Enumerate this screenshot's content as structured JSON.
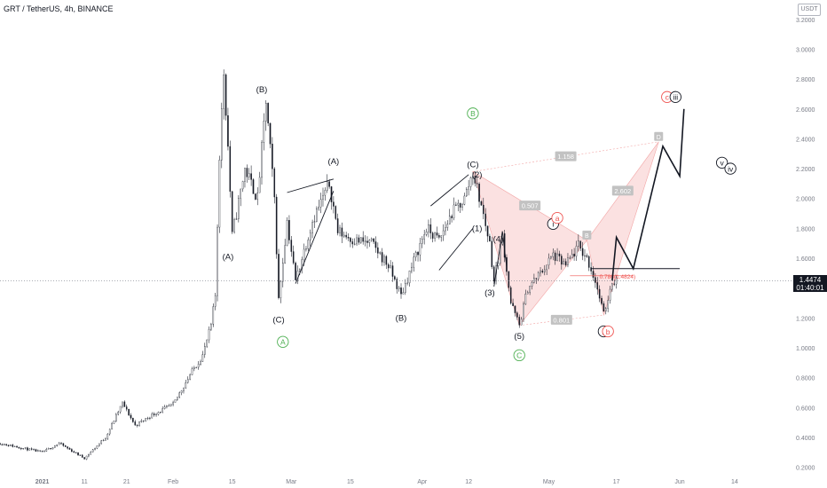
{
  "header": {
    "title": "GRT / TetherUS, 4h, BINANCE",
    "currency": "USDT"
  },
  "price_badge": {
    "price": "1.4474",
    "countdown": "01:40:01"
  },
  "colors": {
    "candle": "#131722",
    "label_black": "#131722",
    "label_green": "#4caf50",
    "label_red": "#ef5350",
    "harmonic_fill": "#f8c9c9",
    "harmonic_label_bg": "#c2c2c2",
    "axis_text": "#787b86",
    "dotted_line": "#787b86"
  },
  "chart_data": {
    "type": "candlestick",
    "symbol": "GRT / TetherUS",
    "interval": "4h",
    "exchange": "BINANCE",
    "x_ticks": [
      "2021",
      "11",
      "21",
      "Feb",
      "15",
      "Mar",
      "15",
      "Apr",
      "12",
      "May",
      "17",
      "Jun",
      "14"
    ],
    "x_tick_dates": [
      "2021-01-01",
      "2021-01-11",
      "2021-01-21",
      "2021-02-01",
      "2021-02-15",
      "2021-03-01",
      "2021-03-15",
      "2021-04-01",
      "2021-04-12",
      "2021-05-01",
      "2021-05-17",
      "2021-06-01",
      "2021-06-14"
    ],
    "y_ticks": [
      "3.2000",
      "3.0000",
      "2.8000",
      "2.6000",
      "2.4000",
      "2.2000",
      "2.0000",
      "1.8000",
      "1.6000",
      "1.4000",
      "1.2000",
      "1.0000",
      "0.8000",
      "0.6000",
      "0.4000",
      "0.2000"
    ],
    "ylim": [
      0.15,
      3.3
    ],
    "current_price": 1.4474,
    "price_path": [
      [
        "2020-12-22",
        0.36
      ],
      [
        "2021-01-01",
        0.3
      ],
      [
        "2021-01-05",
        0.36
      ],
      [
        "2021-01-11",
        0.26
      ],
      [
        "2021-01-16",
        0.4
      ],
      [
        "2021-01-20",
        0.63
      ],
      [
        "2021-01-23",
        0.48
      ],
      [
        "2021-01-27",
        0.55
      ],
      [
        "2021-02-01",
        0.62
      ],
      [
        "2021-02-05",
        0.82
      ],
      [
        "2021-02-08",
        0.95
      ],
      [
        "2021-02-10",
        1.15
      ],
      [
        "2021-02-11",
        1.35
      ],
      [
        "2021-02-12",
        2.3
      ],
      [
        "2021-02-13",
        2.85
      ],
      [
        "2021-02-14",
        2.35
      ],
      [
        "2021-02-15",
        1.75
      ],
      [
        "2021-02-18",
        2.2
      ],
      [
        "2021-02-21",
        2.0
      ],
      [
        "2021-02-23",
        2.65
      ],
      [
        "2021-02-25",
        2.0
      ],
      [
        "2021-02-26",
        1.32
      ],
      [
        "2021-02-28",
        1.85
      ],
      [
        "2021-03-02",
        1.45
      ],
      [
        "2021-03-06",
        1.85
      ],
      [
        "2021-03-10",
        2.1
      ],
      [
        "2021-03-12",
        1.78
      ],
      [
        "2021-03-16",
        1.72
      ],
      [
        "2021-03-20",
        1.7
      ],
      [
        "2021-03-24",
        1.55
      ],
      [
        "2021-03-27",
        1.35
      ],
      [
        "2021-03-30",
        1.58
      ],
      [
        "2021-04-02",
        1.8
      ],
      [
        "2021-04-05",
        1.72
      ],
      [
        "2021-04-08",
        1.9
      ],
      [
        "2021-04-11",
        2.0
      ],
      [
        "2021-04-13",
        2.18
      ],
      [
        "2021-04-15",
        1.95
      ],
      [
        "2021-04-17",
        1.7
      ],
      [
        "2021-04-18",
        1.45
      ],
      [
        "2021-04-20",
        1.75
      ],
      [
        "2021-04-22",
        1.3
      ],
      [
        "2021-04-24",
        1.15
      ],
      [
        "2021-04-26",
        1.4
      ],
      [
        "2021-04-29",
        1.5
      ],
      [
        "2021-05-02",
        1.62
      ],
      [
        "2021-05-05",
        1.55
      ],
      [
        "2021-05-08",
        1.68
      ],
      [
        "2021-05-10",
        1.6
      ],
      [
        "2021-05-12",
        1.45
      ],
      [
        "2021-05-14",
        1.22
      ],
      [
        "2021-05-16",
        1.45
      ],
      [
        "2021-05-17",
        1.4474
      ]
    ],
    "projection_path": [
      [
        "2021-05-16",
        1.45
      ],
      [
        "2021-05-17",
        1.74
      ],
      [
        "2021-05-21",
        1.53
      ],
      [
        "2021-05-28",
        2.35
      ],
      [
        "2021-06-01",
        2.15
      ],
      [
        "2021-06-02",
        2.6
      ]
    ],
    "fib_level": {
      "ratio": "0.786",
      "price": 1.4824,
      "label": "0.786(1.4824)"
    },
    "horizontal_level": 1.53,
    "harmonic_pattern": {
      "points": [
        [
          "2021-04-13",
          2.18
        ],
        [
          "2021-04-24",
          1.15
        ],
        [
          "2021-05-10",
          1.72
        ],
        [
          "2021-05-14",
          1.22
        ],
        [
          "2021-05-27",
          2.38
        ]
      ],
      "point_labels": [
        "",
        "",
        "B",
        "",
        "D"
      ],
      "ratios": [
        "1.158",
        "0.507",
        "0.801",
        "2.602"
      ]
    },
    "annotations": [
      {
        "text": "(B)",
        "date": "2021-02-22",
        "price": 2.73,
        "color": "black"
      },
      {
        "text": "(A)",
        "date": "2021-02-14",
        "price": 1.61,
        "color": "black"
      },
      {
        "text": "(C)",
        "date": "2021-02-26",
        "price": 1.19,
        "color": "black"
      },
      {
        "text": "A",
        "date": "2021-02-27",
        "price": 1.04,
        "color": "green",
        "circle": true
      },
      {
        "text": "(A)",
        "date": "2021-03-11",
        "price": 2.25,
        "color": "black"
      },
      {
        "text": "(B)",
        "date": "2021-03-27",
        "price": 1.2,
        "color": "black"
      },
      {
        "text": "B",
        "date": "2021-04-13",
        "price": 2.57,
        "color": "green",
        "circle": true
      },
      {
        "text": "(C)",
        "date": "2021-04-13",
        "price": 2.23,
        "color": "black"
      },
      {
        "text": "(2)",
        "date": "2021-04-14",
        "price": 2.16,
        "color": "black"
      },
      {
        "text": "(1)",
        "date": "2021-04-14",
        "price": 1.8,
        "color": "black"
      },
      {
        "text": "(4)",
        "date": "2021-04-19",
        "price": 1.73,
        "color": "black"
      },
      {
        "text": "(3)",
        "date": "2021-04-17",
        "price": 1.37,
        "color": "black"
      },
      {
        "text": "(5)",
        "date": "2021-04-24",
        "price": 1.08,
        "color": "black"
      },
      {
        "text": "C",
        "date": "2021-04-24",
        "price": 0.95,
        "color": "green",
        "circle": true
      },
      {
        "text": "i",
        "date": "2021-05-02",
        "price": 1.83,
        "color": "black",
        "circle": true
      },
      {
        "text": "a",
        "date": "2021-05-03",
        "price": 1.87,
        "color": "red",
        "circle": true
      },
      {
        "text": "ii",
        "date": "2021-05-14",
        "price": 1.11,
        "color": "black",
        "circle": true
      },
      {
        "text": "b",
        "date": "2021-05-15",
        "price": 1.11,
        "color": "red",
        "circle": true
      },
      {
        "text": "c",
        "date": "2021-05-29",
        "price": 2.68,
        "color": "red",
        "circle": true
      },
      {
        "text": "iii",
        "date": "2021-05-31",
        "price": 2.68,
        "color": "black",
        "circle": true
      },
      {
        "text": "v",
        "date": "2021-06-11",
        "price": 2.24,
        "color": "black",
        "circle": true
      },
      {
        "text": "iv",
        "date": "2021-06-13",
        "price": 2.2,
        "color": "black",
        "circle": true
      }
    ]
  }
}
